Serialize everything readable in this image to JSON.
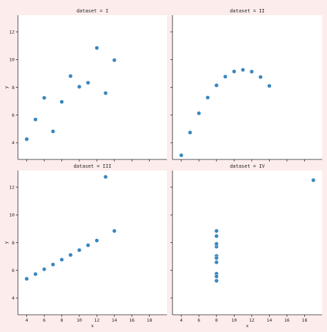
{
  "chart_data": [
    {
      "type": "scatter",
      "title": "dataset = I",
      "xlabel": "",
      "ylabel": "y",
      "xlim": [
        3,
        20
      ],
      "ylim": [
        2.8,
        13.2
      ],
      "xticks": [
        4,
        6,
        8,
        10,
        12,
        14,
        16,
        18
      ],
      "yticks": [
        4,
        6,
        8,
        10,
        12
      ],
      "show_xtick_labels": false,
      "show_ytick_labels": true,
      "grid": false,
      "color": "#3a87c0",
      "x": [
        10,
        8,
        13,
        9,
        11,
        14,
        6,
        4,
        12,
        7,
        5
      ],
      "y": [
        8.04,
        6.95,
        7.58,
        8.81,
        8.33,
        9.96,
        7.24,
        4.26,
        10.84,
        4.82,
        5.68
      ]
    },
    {
      "type": "scatter",
      "title": "dataset = II",
      "xlabel": "",
      "ylabel": "",
      "xlim": [
        3,
        20
      ],
      "ylim": [
        2.8,
        13.2
      ],
      "xticks": [
        4,
        6,
        8,
        10,
        12,
        14,
        16,
        18
      ],
      "yticks": [
        4,
        6,
        8,
        10,
        12
      ],
      "show_xtick_labels": false,
      "show_ytick_labels": false,
      "grid": false,
      "color": "#3a87c0",
      "x": [
        10,
        8,
        13,
        9,
        11,
        14,
        6,
        4,
        12,
        7,
        5
      ],
      "y": [
        9.14,
        8.14,
        8.74,
        8.77,
        9.26,
        8.1,
        6.13,
        3.1,
        9.13,
        7.26,
        4.74
      ]
    },
    {
      "type": "scatter",
      "title": "dataset = III",
      "xlabel": "x",
      "ylabel": "y",
      "xlim": [
        3,
        20
      ],
      "ylim": [
        2.8,
        13.2
      ],
      "xticks": [
        4,
        6,
        8,
        10,
        12,
        14,
        16,
        18
      ],
      "yticks": [
        4,
        6,
        8,
        10,
        12
      ],
      "show_xtick_labels": true,
      "show_ytick_labels": true,
      "grid": false,
      "color": "#3a87c0",
      "x": [
        10,
        8,
        13,
        9,
        11,
        14,
        6,
        4,
        12,
        7,
        5
      ],
      "y": [
        7.46,
        6.77,
        12.74,
        7.11,
        7.81,
        8.84,
        6.08,
        5.39,
        8.15,
        6.42,
        5.73
      ]
    },
    {
      "type": "scatter",
      "title": "dataset = IV",
      "xlabel": "x",
      "ylabel": "",
      "xlim": [
        3,
        20
      ],
      "ylim": [
        2.8,
        13.2
      ],
      "xticks": [
        4,
        6,
        8,
        10,
        12,
        14,
        16,
        18
      ],
      "yticks": [
        4,
        6,
        8,
        10,
        12
      ],
      "show_xtick_labels": true,
      "show_ytick_labels": false,
      "grid": false,
      "color": "#3a87c0",
      "x": [
        8,
        8,
        8,
        8,
        8,
        8,
        8,
        19,
        8,
        8,
        8
      ],
      "y": [
        6.58,
        5.76,
        7.71,
        8.84,
        8.47,
        7.04,
        5.25,
        12.5,
        5.56,
        7.91,
        6.89
      ]
    }
  ],
  "colors": {
    "figure_background": "#fdecec",
    "axes_background": "#ffffff",
    "marker": "#3a87c0",
    "spine": "#222222"
  }
}
